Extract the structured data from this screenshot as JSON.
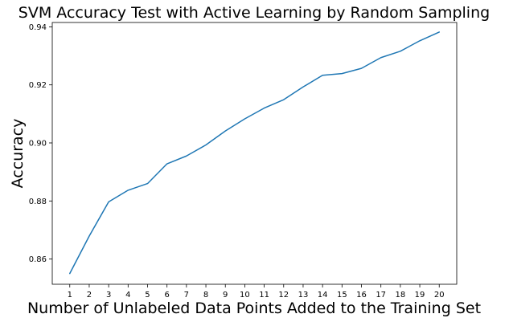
{
  "chart_data": {
    "type": "line",
    "title": "SVM Accuracy Test with Active Learning by Random Sampling",
    "xlabel": "Number of Unlabeled Data Points Added to the Training Set",
    "ylabel": "Accuracy",
    "x": [
      1,
      2,
      3,
      4,
      5,
      6,
      7,
      8,
      9,
      10,
      11,
      12,
      13,
      14,
      15,
      16,
      17,
      18,
      19,
      20
    ],
    "x_ticks": [
      "1",
      "2",
      "3",
      "4",
      "5",
      "6",
      "7",
      "8",
      "9",
      "10",
      "11",
      "12",
      "13",
      "14",
      "15",
      "16",
      "17",
      "18",
      "19",
      "20"
    ],
    "y_ticks": [
      0.86,
      0.88,
      0.9,
      0.92,
      0.94
    ],
    "y_tick_labels": [
      "0.86",
      "0.88",
      "0.90",
      "0.92",
      "0.94"
    ],
    "xlim": [
      0.1,
      20.9
    ],
    "ylim": [
      0.8513,
      0.9415
    ],
    "series": [
      {
        "values": [
          0.855,
          0.8679,
          0.8797,
          0.8837,
          0.886,
          0.8928,
          0.8955,
          0.8993,
          0.9041,
          0.9083,
          0.912,
          0.9149,
          0.9193,
          0.9233,
          0.9239,
          0.9257,
          0.9294,
          0.9316,
          0.9352,
          0.9382
        ],
        "color": "#1f77b4"
      }
    ],
    "grid": false,
    "legend": "none"
  }
}
